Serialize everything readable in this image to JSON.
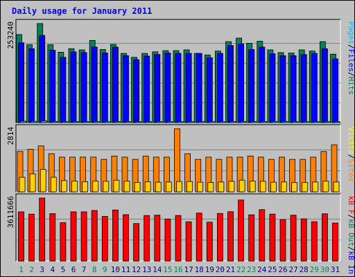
{
  "chart_data": {
    "type": "bar",
    "title": "Daily usage for January 2011",
    "categories": [
      "1",
      "2",
      "3",
      "4",
      "5",
      "6",
      "7",
      "8",
      "9",
      "10",
      "11",
      "12",
      "13",
      "14",
      "15",
      "16",
      "17",
      "18",
      "19",
      "20",
      "21",
      "22",
      "23",
      "24",
      "25",
      "26",
      "27",
      "28",
      "29",
      "30",
      "31"
    ],
    "weekend_days": [
      "1",
      "2",
      "8",
      "9",
      "15",
      "16",
      "22",
      "23",
      "29",
      "30"
    ],
    "grid": true,
    "panels": [
      {
        "name": "hits-files-pages",
        "ymax_label": "253240",
        "ylim": [
          0,
          253240
        ],
        "axis_legend": [
          {
            "text": "Pages",
            "color": "#00C0FF"
          },
          {
            "text": "/",
            "color": "#000000"
          },
          {
            "text": "Files",
            "color": "#0000FF"
          },
          {
            "text": "/",
            "color": "#000000"
          },
          {
            "text": "Hits",
            "color": "#00805C"
          }
        ],
        "series": [
          {
            "name": "Hits",
            "color": "#00805C",
            "values": [
              225000,
              199000,
              253240,
              199000,
              180000,
              189000,
              186000,
              210000,
              187000,
              200000,
              177000,
              167000,
              177000,
              181000,
              184000,
              184000,
              186000,
              177000,
              173000,
              183000,
              207000,
              216000,
              203000,
              208000,
              186000,
              179000,
              178000,
              186000,
              183000,
              207000,
              175000
            ]
          },
          {
            "name": "Files",
            "color": "#0000FF",
            "values": [
              204000,
              189000,
              223000,
              185000,
              167000,
              181000,
              179000,
              193000,
              178000,
              193000,
              171000,
              161000,
              170000,
              174000,
              178000,
              177000,
              177000,
              177000,
              166000,
              177000,
              197000,
              201000,
              187000,
              193000,
              176000,
              171000,
              171000,
              174000,
              177000,
              189000,
              163000
            ]
          },
          {
            "name": "Pages",
            "color": "#00C0FF",
            "values": [
              3500,
              3200,
              4000,
              2800,
              2500,
              2700,
              2600,
              2900,
              2500,
              2700,
              2400,
              2300,
              2400,
              2500,
              2500,
              2600,
              2600,
              2500,
              2400,
              2500,
              2800,
              2900,
              2700,
              2800,
              2500,
              2500,
              2400,
              2500,
              2500,
              2700,
              2300
            ]
          }
        ]
      },
      {
        "name": "visits-sites",
        "ymax_label": "2814",
        "ylim": [
          0,
          2814
        ],
        "axis_legend": [
          {
            "text": "Visits",
            "color": "#FFFF00"
          },
          {
            "text": "/",
            "color": "#000000"
          },
          {
            "text": "Sites",
            "color": "#FF8000"
          }
        ],
        "series": [
          {
            "name": "Sites",
            "color": "#FF8000",
            "values": [
              1800,
              1900,
              2050,
              1700,
              1550,
              1550,
              1550,
              1550,
              1450,
              1600,
              1550,
              1450,
              1600,
              1550,
              1550,
              2814,
              1700,
              1450,
              1550,
              1450,
              1550,
              1550,
              1600,
              1550,
              1450,
              1550,
              1450,
              1450,
              1550,
              1800,
              2100
            ]
          },
          {
            "name": "Visits",
            "color": "#FFD000",
            "values": [
              650,
              800,
              1000,
              650,
              500,
              480,
              450,
              480,
              470,
              520,
              480,
              420,
              450,
              430,
              440,
              460,
              460,
              430,
              420,
              440,
              470,
              520,
              480,
              470,
              430,
              440,
              410,
              420,
              440,
              480,
              440
            ]
          }
        ]
      },
      {
        "name": "kbytes",
        "ymax_label": "3611666",
        "ylim": [
          0,
          3611666
        ],
        "axis_legend": [
          {
            "text": "kB F",
            "color": "#FF0000"
          },
          {
            "text": "/",
            "color": "#000000"
          },
          {
            "text": "kB Out",
            "color": "#00805C"
          },
          {
            "text": "/",
            "color": "#000000"
          },
          {
            "text": "kB In",
            "color": "#0000FF"
          }
        ],
        "series": [
          {
            "name": "kB F",
            "color": "#FF0000",
            "values": [
              2820000,
              2690000,
              3611666,
              2720000,
              2200000,
              2820000,
              2820000,
              2900000,
              2560000,
              2930000,
              2660000,
              2150000,
              2610000,
              2630000,
              2410000,
              2610000,
              2250000,
              2750000,
              2230000,
              2730000,
              2830000,
              3500000,
              2650000,
              2950000,
              2690000,
              2370000,
              2630000,
              2420000,
              2260000,
              2710000,
              2180000
            ]
          }
        ]
      }
    ]
  }
}
